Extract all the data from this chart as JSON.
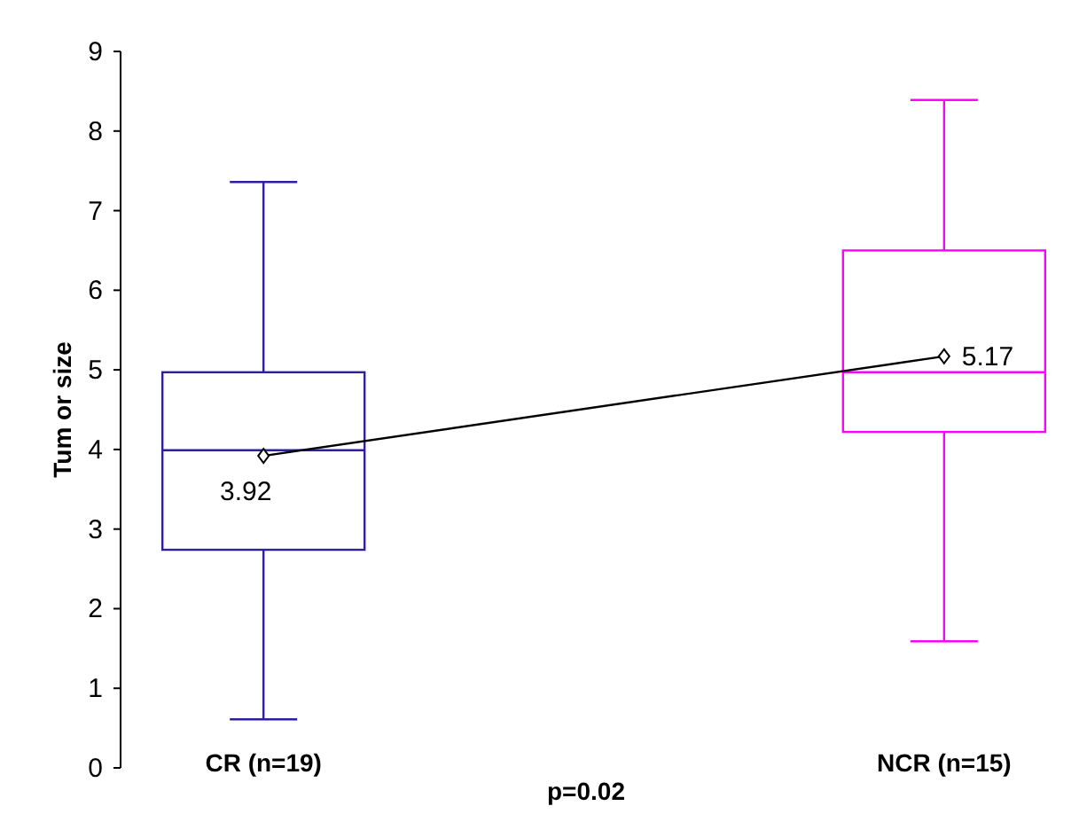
{
  "chart_data": {
    "type": "box",
    "ylabel": "Tum or size",
    "categories": [
      "CR (n=19)",
      "NCR (n=15)"
    ],
    "ylim": [
      0,
      9
    ],
    "yticks": [
      0,
      1,
      2,
      3,
      4,
      5,
      6,
      7,
      8,
      9
    ],
    "grid": false,
    "series": [
      {
        "colors": [
          "#2e1f9c",
          "#ff00ff"
        ],
        "boxes": [
          {
            "low": 0.61,
            "q1": 2.74,
            "median": 3.99,
            "q3": 4.97,
            "high": 7.36
          },
          {
            "low": 1.59,
            "q1": 4.22,
            "median": 4.97,
            "q3": 6.5,
            "high": 8.39
          }
        ]
      },
      {
        "type": "line",
        "values": [
          3.92,
          5.17
        ],
        "color": "#000000",
        "marker": "diamond",
        "line_style": "solid",
        "data_labels": true
      }
    ],
    "annotations": [
      "p=0.02"
    ]
  }
}
